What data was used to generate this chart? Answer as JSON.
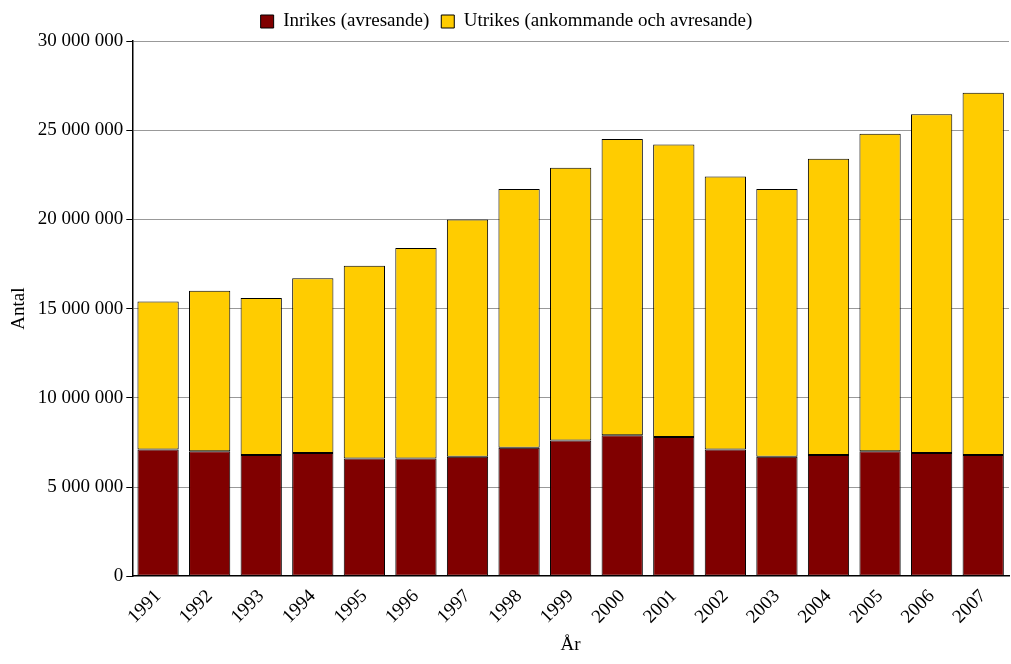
{
  "chart_data": {
    "type": "bar",
    "stacked": true,
    "xlabel": "År",
    "ylabel": "Antal",
    "categories": [
      "1991",
      "1992",
      "1993",
      "1994",
      "1995",
      "1996",
      "1997",
      "1998",
      "1999",
      "2000",
      "2001",
      "2002",
      "2003",
      "2004",
      "2005",
      "2006",
      "2007"
    ],
    "series": [
      {
        "name": "Inrikes (avresande)",
        "color": "#800000",
        "values": [
          7100000,
          7000000,
          6800000,
          6900000,
          6600000,
          6600000,
          6700000,
          7200000,
          7600000,
          7900000,
          7800000,
          7100000,
          6700000,
          6800000,
          7000000,
          6900000,
          6800000
        ]
      },
      {
        "name": "Utrikes (ankommande och avresande)",
        "color": "#ffcc00",
        "values": [
          8300000,
          9000000,
          8800000,
          9800000,
          10800000,
          11800000,
          13300000,
          14500000,
          15300000,
          16600000,
          16400000,
          15300000,
          15000000,
          16600000,
          17800000,
          19000000,
          20300000
        ]
      }
    ],
    "ylim": [
      0,
      30000000
    ],
    "yticks": [
      0,
      {
        "value": 5000000,
        "label": "5 000 000"
      },
      {
        "value": 10000000,
        "label": "10 000 000"
      },
      {
        "value": 15000000,
        "label": "15 000 000"
      },
      {
        "value": 20000000,
        "label": "20 000 000"
      },
      {
        "value": 25000000,
        "label": "25 000 000"
      },
      {
        "value": 30000000,
        "label": "30 000 000"
      }
    ],
    "grid": "y",
    "legend": "top"
  }
}
